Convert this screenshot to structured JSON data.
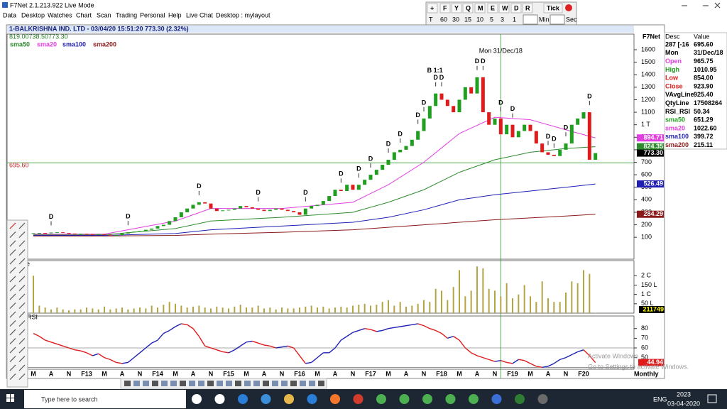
{
  "window": {
    "title": "F7Net 2.1.213.922 Live Mode"
  },
  "menu": [
    "Data",
    "Desktop",
    "Watches",
    "Chart",
    "Scan",
    "Trading",
    "Personal",
    "Help",
    "Live Chat",
    "Desktop : mylayout"
  ],
  "toolbar": {
    "row1": [
      "+",
      "F",
      "Y",
      "Q",
      "M",
      "E",
      "W",
      "D",
      "R",
      "Tick"
    ],
    "row2": [
      "T",
      "60",
      "30",
      "15",
      "10",
      "5",
      "3",
      "1"
    ],
    "min": "Min",
    "sec": "Sec"
  },
  "chart_data": {
    "type": "candlestick",
    "title": "1-BALKRISHNA IND. LTD - 03/04/20 15:51:20 773.30 (2.32%)",
    "subtitle": "819.00738.50773.30",
    "brand": "F7Net",
    "crosshair": {
      "label": "Mon 31/Dec/18",
      "x": 79
    },
    "closes": [
      130,
      135,
      132,
      138,
      140,
      135,
      130,
      128,
      128,
      125,
      122,
      125,
      120,
      118,
      118,
      130,
      140,
      145,
      150,
      160,
      170,
      190,
      200,
      230,
      260,
      300,
      330,
      360,
      380,
      370,
      330,
      310,
      315,
      320,
      330,
      350,
      340,
      330,
      320,
      310,
      320,
      330,
      320,
      310,
      300,
      280,
      330,
      350,
      360,
      390,
      430,
      480,
      470,
      520,
      480,
      520,
      560,
      600,
      640,
      680,
      720,
      780,
      800,
      830,
      880,
      950,
      1050,
      1150,
      1250,
      1200,
      1150,
      1100,
      1200,
      1300,
      1250,
      1380,
      1100,
      1000,
      1050,
      923.9,
      1000,
      900,
      950,
      1000,
      950,
      850,
      780,
      760,
      750,
      800,
      850,
      1000,
      1050,
      1100,
      720,
      773.3
    ],
    "last_label": "773.30",
    "up_color": "#1f9e1f",
    "down_color": "#e01b1b",
    "ylim": [
      -75,
      1725
    ],
    "yticks": [
      100,
      200,
      300,
      400,
      500,
      600,
      700,
      800,
      900,
      {
        "value": 1000,
        "label": "1 T"
      },
      1100,
      1200,
      1300,
      1400,
      1500,
      1600
    ],
    "reference_line": {
      "value": 695.6,
      "label": "695.60",
      "color": "#2e9b2e"
    },
    "sma": {
      "x": [
        0,
        12,
        24,
        30,
        42,
        54,
        60,
        66,
        72,
        78,
        84,
        90,
        95
      ],
      "series": [
        {
          "name": "sma50",
          "color": "#2e8b2e",
          "values": [
            120,
            120,
            170,
            230,
            260,
            300,
            380,
            480,
            620,
            720,
            780,
            810,
            824.35
          ]
        },
        {
          "name": "sma20",
          "color": "#e23ee2",
          "values": [
            125,
            125,
            230,
            330,
            330,
            380,
            520,
            700,
            930,
            1060,
            1040,
            960,
            894.71
          ]
        },
        {
          "name": "sma100",
          "color": "#1f1fb4",
          "values": [
            115,
            115,
            130,
            160,
            190,
            220,
            260,
            320,
            400,
            440,
            470,
            500,
            526.49
          ]
        },
        {
          "name": "sma200",
          "color": "#8b1a1a",
          "values": [
            110,
            110,
            115,
            125,
            140,
            160,
            180,
            200,
            220,
            240,
            255,
            270,
            284.29
          ]
        }
      ]
    },
    "annotations": {
      "dividend": {
        "label": "D",
        "x": [
          3,
          16,
          28,
          38,
          46,
          52,
          55,
          57,
          60,
          62,
          65,
          66,
          68,
          69,
          75,
          76,
          79,
          81,
          87,
          88,
          90,
          94
        ]
      },
      "split": {
        "label": "B 1:1",
        "x": 68
      }
    },
    "volume": {
      "label": "Volume",
      "color": "#b3a444",
      "values": [
        200,
        40,
        30,
        20,
        30,
        20,
        15,
        20,
        20,
        30,
        25,
        20,
        35,
        20,
        25,
        30,
        20,
        25,
        30,
        25,
        40,
        30,
        45,
        60,
        50,
        40,
        30,
        35,
        40,
        30,
        25,
        35,
        30,
        25,
        35,
        45,
        30,
        30,
        40,
        25,
        30,
        20,
        30,
        25,
        25,
        30,
        35,
        40,
        30,
        35,
        25,
        30,
        35,
        30,
        40,
        45,
        50,
        40,
        45,
        60,
        70,
        40,
        60,
        35,
        40,
        50,
        70,
        60,
        130,
        120,
        70,
        140,
        230,
        90,
        120,
        250,
        240,
        130,
        120,
        90,
        160,
        80,
        100,
        150,
        90,
        60,
        170,
        80,
        60,
        60,
        110,
        170,
        160,
        230,
        210,
        2.12
      ],
      "ylim": [
        0,
        281
      ],
      "yticks": [
        {
          "value": 200,
          "label": "2 C"
        },
        {
          "value": 150,
          "label": "150 L"
        },
        {
          "value": 100,
          "label": "1 C"
        },
        {
          "value": 50,
          "label": "50 L"
        }
      ],
      "last_label": "211749"
    },
    "rsi": {
      "label": "RSI",
      "rise_color": "#1f1fb4",
      "fall_color": "#e01b1b",
      "values": [
        75,
        72,
        68,
        66,
        64,
        62,
        60,
        58,
        57,
        55,
        52,
        54,
        50,
        48,
        45,
        44,
        45,
        50,
        55,
        60,
        65,
        68,
        75,
        78,
        82,
        85,
        84,
        80,
        72,
        62,
        60,
        58,
        56,
        55,
        58,
        62,
        66,
        67,
        65,
        63,
        62,
        60,
        61,
        62,
        60,
        52,
        44,
        45,
        50,
        55,
        55,
        60,
        68,
        72,
        76,
        78,
        80,
        79,
        77,
        78,
        80,
        81,
        82,
        83,
        84,
        85,
        83,
        80,
        78,
        75,
        70,
        72,
        68,
        60,
        55,
        52,
        50,
        48,
        46,
        47,
        45,
        44,
        48,
        47,
        44,
        41,
        40,
        41,
        44,
        48,
        50,
        53,
        56,
        58,
        52,
        44.94
      ],
      "ylim": [
        38,
        93
      ],
      "yticks": [
        50,
        60,
        70,
        80
      ],
      "levels": [
        60,
        40
      ]
    },
    "x_labels": [
      "M",
      "A",
      "N",
      "F13",
      "M",
      "A",
      "N",
      "F14",
      "M",
      "A",
      "N",
      "F15",
      "M",
      "A",
      "N",
      "F16",
      "M",
      "A",
      "N",
      "F17",
      "M",
      "A",
      "N",
      "F18",
      "M",
      "A",
      "N",
      "F19",
      "M",
      "A",
      "N",
      "F20"
    ],
    "period": "Monthly"
  },
  "data_window": {
    "header": [
      "Desc",
      "Value"
    ],
    "rows": [
      [
        "287 [-16",
        "695.60"
      ],
      [
        "Mon",
        "31/Dec/18"
      ],
      [
        "Open",
        "965.75"
      ],
      [
        "High",
        "1010.95"
      ],
      [
        "Low",
        "854.00"
      ],
      [
        "Close",
        "923.90"
      ],
      [
        "VAvgLine",
        "925.40"
      ],
      [
        "QtyLine",
        "17508264"
      ],
      [
        "RSI_RSI",
        "50.34"
      ],
      [
        "sma50",
        "651.29"
      ],
      [
        "sma20",
        "1022.60"
      ],
      [
        "sma100",
        "399.72"
      ],
      [
        "sma200",
        "215.11"
      ]
    ],
    "colors": [
      "#000",
      "#000",
      "#e23ee2",
      "#1f9e1f",
      "#e01b1b",
      "#e01b1b",
      "#000",
      "#000",
      "#000",
      "#1f9e1f",
      "#e23ee2",
      "#1f1fb4",
      "#8b1a1a"
    ]
  },
  "watermark": [
    "Activate Windows",
    "Go to Settings to activate Windows."
  ],
  "taskbar": {
    "search": "Type here to search",
    "lang": "ENG",
    "time": "2023",
    "date": "03-04-2020"
  }
}
